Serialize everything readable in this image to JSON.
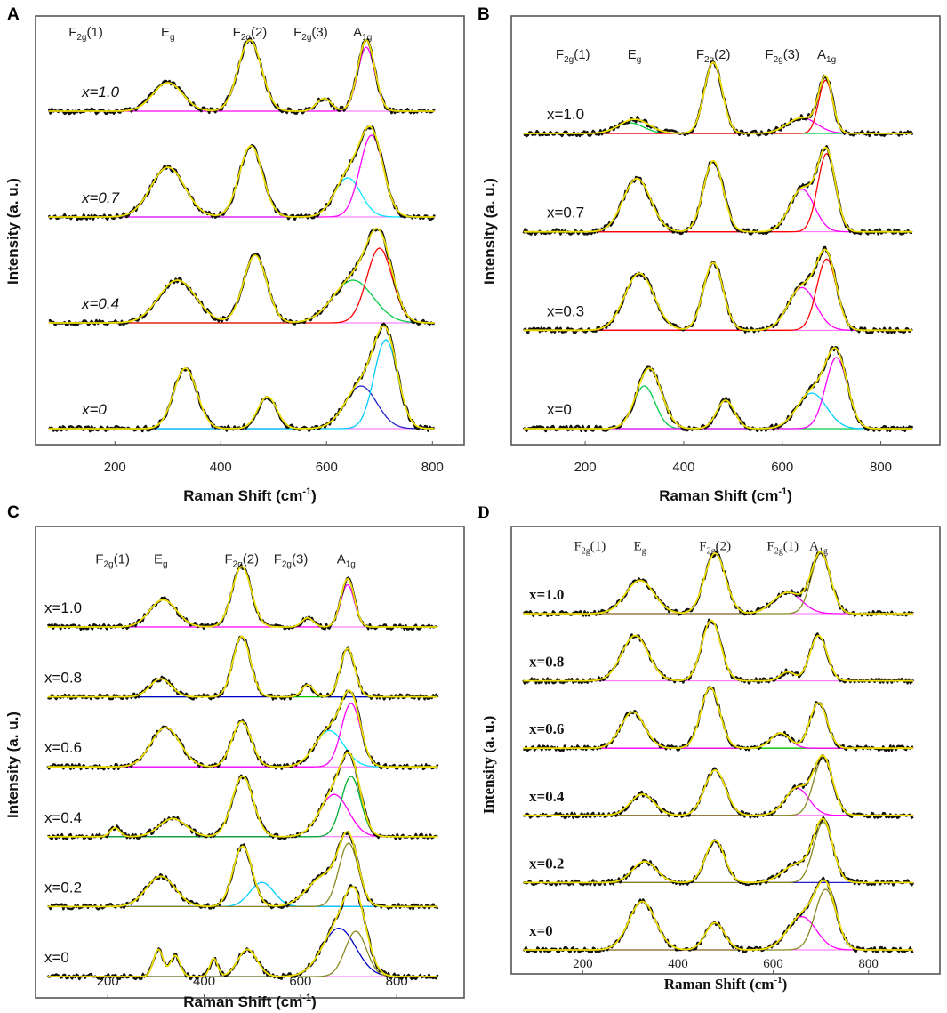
{
  "figure": {
    "panels": [
      "A",
      "B",
      "C",
      "D"
    ]
  },
  "chart_data": [
    {
      "panel": "A",
      "type": "line",
      "ylabel": "Intensity (a. u.)",
      "xlabel": "Raman Shift (cm",
      "xlabel_sup": "-1",
      "xlabel_end": ")",
      "xlim": [
        50,
        860
      ],
      "xticks": [
        200,
        400,
        600,
        800
      ],
      "grid": false,
      "modes": [
        {
          "base": "F",
          "sub": "2g",
          "suffix": "(1)",
          "x": 145
        },
        {
          "base": "E",
          "sub": "g",
          "suffix": "",
          "x": 300
        },
        {
          "base": "F",
          "sub": "2g",
          "suffix": "(2)",
          "x": 455
        },
        {
          "base": "F",
          "sub": "2g",
          "suffix": "(3)",
          "x": 570
        },
        {
          "base": "A",
          "sub": "1g",
          "suffix": "",
          "x": 668
        }
      ],
      "series": [
        {
          "name": "x=1.0",
          "peaks": [
            [
              300,
              0.4,
              28
            ],
            [
              455,
              1.0,
              22
            ],
            [
              595,
              0.18,
              14
            ],
            [
              675,
              1.0,
              16
            ]
          ],
          "components": [
            {
              "color": "#ff00ff",
              "peak": [
                675,
                0.9,
                16
              ]
            }
          ]
        },
        {
          "name": "x=0.7",
          "peaks": [
            [
              300,
              0.7,
              32
            ],
            [
              457,
              1.0,
              22
            ],
            [
              640,
              0.55,
              25
            ],
            [
              685,
              1.15,
              22
            ]
          ],
          "components": [
            {
              "color": "#00e5ff",
              "peak": [
                640,
                0.55,
                25
              ]
            },
            {
              "color": "#ff00ff",
              "peak": [
                685,
                1.15,
                22
              ]
            }
          ]
        },
        {
          "name": "x=0.4",
          "peaks": [
            [
              318,
              0.6,
              35
            ],
            [
              465,
              0.95,
              22
            ],
            [
              650,
              0.6,
              38
            ],
            [
              700,
              1.05,
              24
            ]
          ],
          "components": [
            {
              "color": "#00cc44",
              "peak": [
                650,
                0.6,
                38
              ]
            },
            {
              "color": "#ff0000",
              "peak": [
                700,
                1.05,
                24
              ]
            }
          ]
        },
        {
          "name": "x=0",
          "peaks": [
            [
              333,
              0.85,
              22
            ],
            [
              488,
              0.45,
              18
            ],
            [
              665,
              0.6,
              30
            ],
            [
              712,
              1.25,
              22
            ]
          ],
          "components": [
            {
              "color": "#2222cc",
              "peak": [
                665,
                0.6,
                30
              ]
            },
            {
              "color": "#00ccff",
              "peak": [
                712,
                1.25,
                22
              ]
            }
          ]
        }
      ]
    },
    {
      "panel": "B",
      "type": "line",
      "ylabel": "Intensity (a. u.)",
      "xlabel": "Raman Shift (cm",
      "xlabel_sup": "-1",
      "xlabel_end": ")",
      "xlim": [
        50,
        920
      ],
      "xticks": [
        200,
        400,
        600,
        800
      ],
      "grid": false,
      "modes": [
        {
          "base": "F",
          "sub": "2g",
          "suffix": "(1)",
          "x": 175
        },
        {
          "base": "E",
          "sub": "g",
          "suffix": "",
          "x": 300
        },
        {
          "base": "F",
          "sub": "2g",
          "suffix": "(2)",
          "x": 460
        },
        {
          "base": "F",
          "sub": "2g",
          "suffix": "(3)",
          "x": 600
        },
        {
          "base": "A",
          "sub": "1g",
          "suffix": "",
          "x": 690
        }
      ],
      "series": [
        {
          "name": "x=1.0",
          "peaks": [
            [
              300,
              0.2,
              30
            ],
            [
              460,
              1.0,
              18
            ],
            [
              640,
              0.22,
              30
            ],
            [
              688,
              0.75,
              14
            ]
          ],
          "components": [
            {
              "color": "#00cc44",
              "peak": [
                290,
                0.15,
                28
              ]
            },
            {
              "color": "#ff00ff",
              "peak": [
                640,
                0.22,
                30
              ]
            },
            {
              "color": "#ff0000",
              "peak": [
                688,
                0.75,
                14
              ]
            }
          ]
        },
        {
          "name": "x=0.7",
          "peaks": [
            [
              305,
              0.75,
              28
            ],
            [
              460,
              1.0,
              20
            ],
            [
              640,
              0.6,
              25
            ],
            [
              690,
              1.1,
              18
            ]
          ],
          "components": [
            {
              "color": "#ff00ff",
              "peak": [
                640,
                0.6,
                25
              ]
            },
            {
              "color": "#ff0000",
              "peak": [
                690,
                1.1,
                18
              ]
            }
          ]
        },
        {
          "name": "x=0.3",
          "peaks": [
            [
              310,
              0.8,
              30
            ],
            [
              460,
              0.95,
              20
            ],
            [
              640,
              0.6,
              28
            ],
            [
              690,
              1.0,
              20
            ]
          ],
          "components": [
            {
              "color": "#ff00ff",
              "peak": [
                640,
                0.6,
                28
              ]
            },
            {
              "color": "#ff0000",
              "peak": [
                690,
                1.0,
                20
              ]
            }
          ]
        },
        {
          "name": "x=0",
          "peaks": [
            [
              330,
              0.85,
              25
            ],
            [
              485,
              0.4,
              18
            ],
            [
              660,
              0.5,
              30
            ],
            [
              710,
              1.0,
              22
            ]
          ],
          "components": [
            {
              "color": "#00cc44",
              "peak": [
                320,
                0.6,
                22
              ]
            },
            {
              "color": "#00ccff",
              "peak": [
                660,
                0.5,
                30
              ]
            },
            {
              "color": "#ff00ff",
              "peak": [
                710,
                1.0,
                22
              ]
            }
          ]
        }
      ]
    },
    {
      "panel": "C",
      "type": "line",
      "ylabel": "Intensity (a. u.)",
      "xlabel": "Raman Shift (cm",
      "xlabel_sup": "-1",
      "xlabel_end": ")",
      "xlim": [
        50,
        940
      ],
      "xticks": [
        200,
        400,
        600,
        800
      ],
      "grid": false,
      "modes": [
        {
          "base": "F",
          "sub": "2g",
          "suffix": "(1)",
          "x": 210
        },
        {
          "base": "E",
          "sub": "g",
          "suffix": "",
          "x": 310
        },
        {
          "base": "F",
          "sub": "2g",
          "suffix": "(2)",
          "x": 478
        },
        {
          "base": "F",
          "sub": "2g",
          "suffix": "(3)",
          "x": 580
        },
        {
          "base": "A",
          "sub": "1g",
          "suffix": "",
          "x": 695
        }
      ],
      "series": [
        {
          "name": "x=1.0",
          "peaks": [
            [
              315,
              0.45,
              28
            ],
            [
              478,
              1.0,
              20
            ],
            [
              615,
              0.15,
              12
            ],
            [
              698,
              0.8,
              14
            ]
          ],
          "components": [
            {
              "color": "#ff00ff",
              "peak": [
                698,
                0.7,
                14
              ]
            }
          ]
        },
        {
          "name": "x=0.8",
          "peaks": [
            [
              310,
              0.3,
              22
            ],
            [
              478,
              1.0,
              18
            ],
            [
              615,
              0.2,
              12
            ],
            [
              698,
              0.8,
              15
            ]
          ],
          "components": [
            {
              "color": "#00cc00",
              "peak": [
                478,
                1.0,
                18
              ]
            },
            {
              "color": "#0000cc",
              "peak": [
                615,
                0.2,
                12
              ]
            }
          ]
        },
        {
          "name": "x=0.6",
          "peaks": [
            [
              320,
              0.65,
              30
            ],
            [
              478,
              0.75,
              20
            ],
            [
              660,
              0.6,
              30
            ],
            [
              705,
              1.05,
              20
            ]
          ],
          "components": [
            {
              "color": "#00e5ff",
              "peak": [
                660,
                0.6,
                30
              ]
            },
            {
              "color": "#ff00ff",
              "peak": [
                705,
                1.05,
                20
              ]
            }
          ]
        },
        {
          "name": "x=0.4",
          "peaks": [
            [
              215,
              0.15,
              10
            ],
            [
              335,
              0.3,
              28
            ],
            [
              480,
              1.0,
              22
            ],
            [
              670,
              0.7,
              30
            ],
            [
              705,
              1.0,
              20
            ]
          ],
          "components": [
            {
              "color": "#ff00ff",
              "peak": [
                670,
                0.7,
                30
              ]
            },
            {
              "color": "#00aa33",
              "peak": [
                705,
                1.0,
                20
              ]
            }
          ]
        },
        {
          "name": "x=0.2",
          "peaks": [
            [
              310,
              0.5,
              30
            ],
            [
              480,
              1.0,
              20
            ],
            [
              650,
              0.5,
              35
            ],
            [
              700,
              1.05,
              20
            ]
          ],
          "components": [
            {
              "color": "#0000cc",
              "peak": [
                480,
                1.0,
                20
              ]
            },
            {
              "color": "#00ccff",
              "peak": [
                520,
                0.4,
                25
              ]
            },
            {
              "color": "#888822",
              "peak": [
                700,
                1.05,
                20
              ]
            }
          ]
        },
        {
          "name": "x=0",
          "peaks": [
            [
              305,
              0.45,
              10
            ],
            [
              340,
              0.35,
              10
            ],
            [
              420,
              0.3,
              8
            ],
            [
              490,
              0.45,
              20
            ],
            [
              680,
              0.8,
              35
            ],
            [
              715,
              0.95,
              22
            ]
          ],
          "components": [
            {
              "color": "#0000cc",
              "peak": [
                680,
                0.8,
                35
              ]
            },
            {
              "color": "#888822",
              "peak": [
                715,
                0.75,
                22
              ]
            }
          ]
        }
      ]
    },
    {
      "panel": "D",
      "type": "line",
      "ylabel": "Intensity (a. u.)",
      "xlabel": "Raman Shift (cm",
      "xlabel_sup": "-1",
      "xlabel_end": ")",
      "xlim": [
        50,
        950
      ],
      "xticks": [
        200,
        400,
        600,
        800
      ],
      "grid": false,
      "modes": [
        {
          "base": "F",
          "sub": "2g",
          "suffix": "(1)",
          "x": 215
        },
        {
          "base": "E",
          "sub": "g",
          "suffix": "",
          "x": 320
        },
        {
          "base": "F",
          "sub": "2g",
          "suffix": "(2)",
          "x": 478
        },
        {
          "base": "F",
          "sub": "2g",
          "suffix": "(1)",
          "x": 620
        },
        {
          "base": "A",
          "sub": "1g",
          "suffix": "",
          "x": 695
        }
      ],
      "series": [
        {
          "name": "x=1.0",
          "peaks": [
            [
              320,
              0.55,
              30
            ],
            [
              478,
              1.0,
              22
            ],
            [
              630,
              0.35,
              30
            ],
            [
              700,
              1.0,
              20
            ]
          ],
          "components": [
            {
              "color": "#ff00ff",
              "peak": [
                630,
                0.35,
                30
              ]
            },
            {
              "color": "#888822",
              "peak": [
                700,
                1.0,
                20
              ]
            }
          ]
        },
        {
          "name": "x=0.8",
          "peaks": [
            [
              310,
              0.75,
              28
            ],
            [
              470,
              1.0,
              20
            ],
            [
              630,
              0.15,
              15
            ],
            [
              695,
              0.75,
              18
            ]
          ],
          "components": []
        },
        {
          "name": "x=0.6",
          "peaks": [
            [
              305,
              0.6,
              25
            ],
            [
              468,
              1.0,
              20
            ],
            [
              615,
              0.25,
              20
            ],
            [
              695,
              0.75,
              18
            ]
          ],
          "components": [
            {
              "color": "#00cc00",
              "peak": [
                305,
                0.6,
                25
              ]
            },
            {
              "color": "#ff00ff",
              "peak": [
                615,
                0.25,
                20
              ]
            }
          ]
        },
        {
          "name": "x=0.4",
          "peaks": [
            [
              325,
              0.35,
              25
            ],
            [
              478,
              0.75,
              22
            ],
            [
              650,
              0.45,
              25
            ],
            [
              705,
              0.95,
              20
            ]
          ],
          "components": [
            {
              "color": "#ff00ff",
              "peak": [
                650,
                0.45,
                25
              ]
            },
            {
              "color": "#888822",
              "peak": [
                705,
                0.95,
                20
              ]
            }
          ]
        },
        {
          "name": "x=0.2",
          "peaks": [
            [
              330,
              0.35,
              25
            ],
            [
              478,
              0.7,
              20
            ],
            [
              650,
              0.3,
              30
            ],
            [
              705,
              1.0,
              20
            ]
          ],
          "components": [
            {
              "color": "#2222cc",
              "peak": [
                478,
                0.7,
                20
              ]
            },
            {
              "color": "#888822",
              "peak": [
                705,
                1.0,
                20
              ]
            }
          ]
        },
        {
          "name": "x=0",
          "peaks": [
            [
              325,
              0.8,
              28
            ],
            [
              478,
              0.45,
              20
            ],
            [
              660,
              0.55,
              30
            ],
            [
              710,
              1.0,
              22
            ]
          ],
          "components": [
            {
              "color": "#ff00ff",
              "peak": [
                660,
                0.55,
                30
              ]
            },
            {
              "color": "#888822",
              "peak": [
                710,
                1.0,
                22
              ]
            }
          ]
        }
      ]
    }
  ]
}
